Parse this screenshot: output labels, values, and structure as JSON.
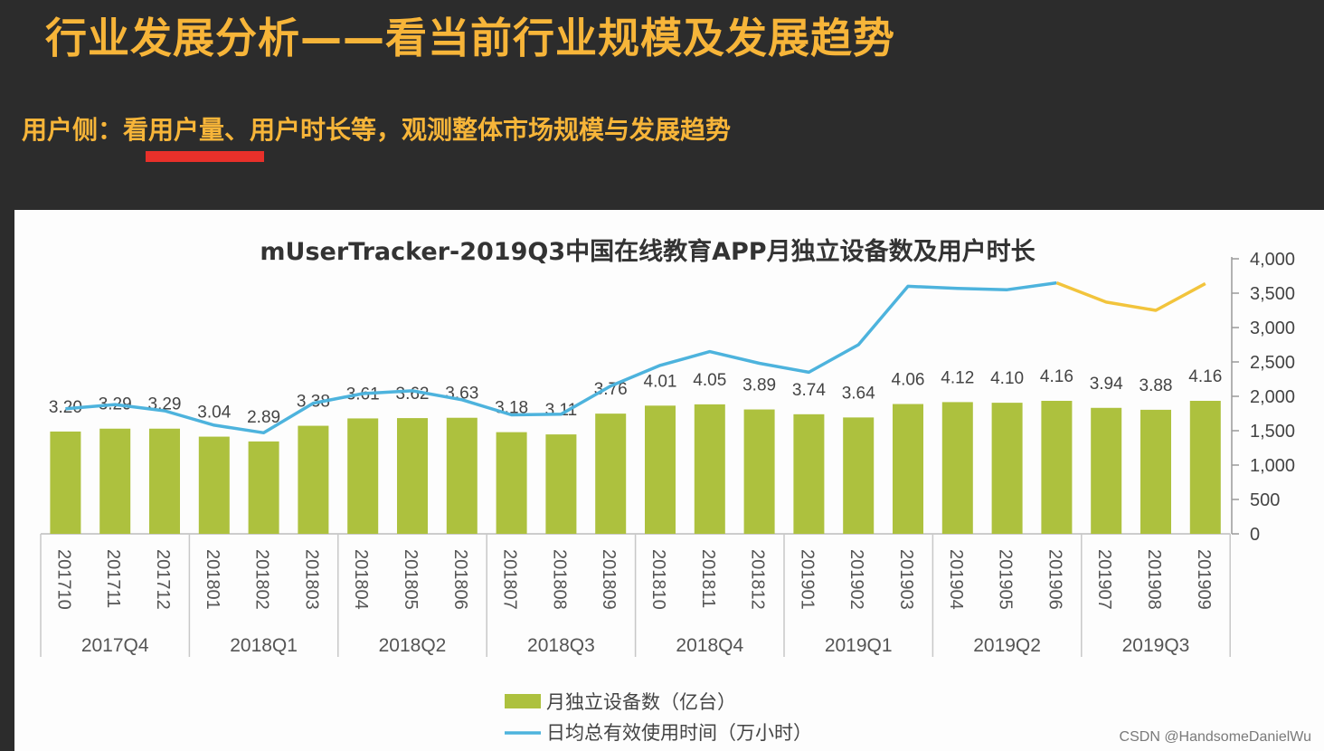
{
  "slide": {
    "title": "行业发展分析——看当前行业规模及发展趋势",
    "subtitle": "用户侧：看用户量、用户时长等，观测整体市场规模与发展趋势"
  },
  "watermark": "CSDN @HandsomeDanielWu",
  "colors": {
    "title": "#f7b539",
    "underline": "#e8302a",
    "bar": "#adc13e",
    "line": "#4db3dd",
    "line_highlight": "#f2c43c"
  },
  "chart_data": {
    "type": "bar",
    "title": "mUserTracker-2019Q3中国在线教育APP月独立设备数及用户时长",
    "categories": [
      "201710",
      "201711",
      "201712",
      "201801",
      "201802",
      "201803",
      "201804",
      "201805",
      "201806",
      "201807",
      "201808",
      "201809",
      "201810",
      "201811",
      "201812",
      "201901",
      "201902",
      "201903",
      "201904",
      "201905",
      "201906",
      "201907",
      "201908",
      "201909"
    ],
    "quarters": [
      "2017Q4",
      "2018Q1",
      "2018Q2",
      "2018Q3",
      "2018Q4",
      "2019Q1",
      "2019Q2",
      "2019Q3"
    ],
    "series": [
      {
        "name": "月独立设备数（亿台）",
        "type": "bar",
        "values": [
          3.2,
          3.29,
          3.29,
          3.04,
          2.89,
          3.38,
          3.61,
          3.62,
          3.63,
          3.18,
          3.11,
          3.76,
          4.01,
          4.05,
          3.89,
          3.74,
          3.64,
          4.06,
          4.12,
          4.1,
          4.16,
          3.94,
          3.88,
          4.16
        ]
      },
      {
        "name": "日均总有效使用时间（万小时）",
        "type": "line",
        "axis": "right",
        "values": [
          1820,
          1880,
          1790,
          1580,
          1470,
          1900,
          2040,
          2080,
          1950,
          1730,
          1740,
          2150,
          2450,
          2650,
          2480,
          2350,
          2750,
          3600,
          3570,
          3550,
          3650,
          3370,
          3250,
          3640
        ]
      }
    ],
    "y_right": {
      "ylim": [
        0,
        4000
      ],
      "ticks": [
        "0",
        "500",
        "1,000",
        "1,500",
        "2,000",
        "2,500",
        "3,000",
        "3,500",
        "4,000"
      ]
    },
    "legend_position": "bottom-center"
  }
}
